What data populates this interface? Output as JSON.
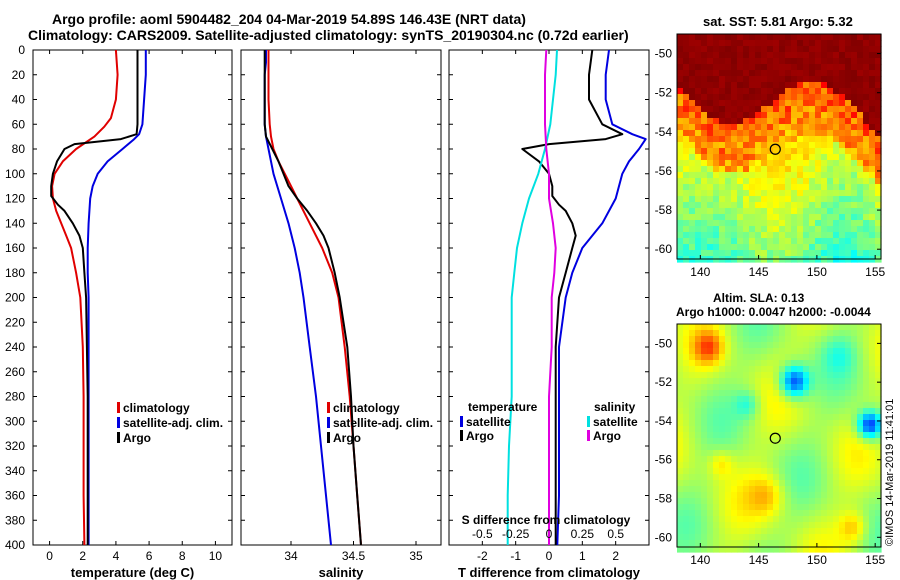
{
  "header": {
    "line1": "Argo profile: aoml 5904482_204 04-Mar-2019 54.89S 146.43E (NRT data)",
    "line2": "Climatology: CARS2009. Satellite-adjusted climatology: synTS_20190304.nc (0.72d earlier)"
  },
  "credit": "©IMOS 14-Mar-2019 11:41:01",
  "colors": {
    "argo": "#000000",
    "clim": "#e00000",
    "sat": "#0000e0",
    "sdiff": "#00e0e0",
    "sal_sat": "#e000e0"
  },
  "chart_data": [
    {
      "id": "temperature",
      "type": "line",
      "xlabel": "temperature (deg C)",
      "xlim": [
        -1,
        11
      ],
      "xticks": [
        "0",
        "2",
        "4",
        "6",
        "8",
        "10"
      ],
      "ylim": [
        0,
        400
      ],
      "yticks": [
        "0",
        "20",
        "40",
        "60",
        "80",
        "100",
        "120",
        "140",
        "160",
        "180",
        "200",
        "220",
        "240",
        "260",
        "280",
        "300",
        "320",
        "340",
        "360",
        "380",
        "400"
      ],
      "legend": [
        "climatology",
        "satellite-adj. clim.",
        "Argo"
      ],
      "series": [
        {
          "name": "climatology",
          "color": "#e00000",
          "depth": [
            0,
            20,
            40,
            55,
            62,
            70,
            80,
            90,
            100,
            110,
            120,
            130,
            140,
            150,
            160,
            180,
            200,
            240,
            280,
            320,
            360,
            400
          ],
          "values": [
            4.0,
            4.1,
            4.0,
            3.7,
            3.3,
            2.7,
            1.6,
            0.8,
            0.3,
            0.15,
            0.2,
            0.4,
            0.7,
            1.0,
            1.3,
            1.6,
            1.85,
            2.0,
            2.05,
            2.05,
            2.05,
            2.1
          ]
        },
        {
          "name": "satellite-adj. clim.",
          "color": "#0000e0",
          "depth": [
            0,
            20,
            40,
            60,
            68,
            72,
            80,
            90,
            100,
            110,
            120,
            140,
            160,
            180,
            200,
            240,
            280,
            320,
            360,
            400
          ],
          "values": [
            5.8,
            5.8,
            5.7,
            5.6,
            5.4,
            5.1,
            4.4,
            3.5,
            2.9,
            2.6,
            2.45,
            2.35,
            2.3,
            2.3,
            2.35,
            2.35,
            2.35,
            2.35,
            2.35,
            2.35
          ]
        },
        {
          "name": "Argo",
          "color": "#000000",
          "depth": [
            0,
            20,
            40,
            60,
            68,
            72,
            76,
            80,
            90,
            100,
            110,
            118,
            125,
            130,
            140,
            150,
            160,
            180,
            200,
            240,
            280,
            320,
            360,
            400
          ],
          "values": [
            5.3,
            5.3,
            5.3,
            5.3,
            5.25,
            4.3,
            1.5,
            0.9,
            0.45,
            0.2,
            0.1,
            0.1,
            0.5,
            0.9,
            1.4,
            1.8,
            2.0,
            2.1,
            2.2,
            2.25,
            2.3,
            2.3,
            2.3,
            2.3
          ]
        }
      ]
    },
    {
      "id": "salinity",
      "type": "line",
      "xlabel": "salinity",
      "xlim": [
        33.6,
        35.2
      ],
      "xticks": [
        "34",
        "34.5",
        "35"
      ],
      "ylim": [
        0,
        400
      ],
      "legend": [
        "climatology",
        "satellite-adj. clim.",
        "Argo"
      ],
      "series": [
        {
          "name": "climatology",
          "color": "#e00000",
          "depth": [
            0,
            20,
            40,
            60,
            70,
            80,
            90,
            100,
            110,
            120,
            140,
            160,
            180,
            200,
            240,
            280,
            320,
            360,
            400
          ],
          "values": [
            33.82,
            33.82,
            33.82,
            33.83,
            33.84,
            33.86,
            33.9,
            33.95,
            34.0,
            34.05,
            34.15,
            34.25,
            34.33,
            34.38,
            34.43,
            34.47,
            34.5,
            34.53,
            34.56
          ]
        },
        {
          "name": "satellite-adj. clim.",
          "color": "#0000e0",
          "depth": [
            0,
            10,
            20,
            40,
            60,
            70,
            80,
            100,
            120,
            140,
            160,
            180,
            200,
            240,
            280,
            320,
            360,
            400
          ],
          "values": [
            33.8,
            33.8,
            33.79,
            33.79,
            33.79,
            33.8,
            33.82,
            33.86,
            33.92,
            33.98,
            34.03,
            34.07,
            34.1,
            34.15,
            34.2,
            34.24,
            34.28,
            34.32
          ]
        },
        {
          "name": "Argo",
          "color": "#000000",
          "depth": [
            0,
            20,
            40,
            60,
            70,
            80,
            90,
            100,
            110,
            120,
            130,
            140,
            150,
            160,
            180,
            200,
            220,
            240,
            280,
            320,
            360,
            400
          ],
          "values": [
            33.79,
            33.79,
            33.79,
            33.79,
            33.8,
            33.85,
            33.9,
            33.94,
            33.98,
            34.05,
            34.13,
            34.2,
            34.26,
            34.3,
            34.35,
            34.39,
            34.42,
            34.45,
            34.48,
            34.5,
            34.53,
            34.56
          ]
        }
      ]
    },
    {
      "id": "difference",
      "type": "line",
      "xlabel": "T difference from climatology",
      "xlabel_top": "S difference from climatology",
      "xlim": [
        -3,
        3
      ],
      "xticks": [
        "-2",
        "-1",
        "0",
        "1",
        "2"
      ],
      "sticks": [
        "-0.5",
        "-0.25",
        "0",
        "0.25",
        "0.5"
      ],
      "ylim": [
        0,
        400
      ],
      "legend_temperature": {
        "heading": "temperature",
        "items": [
          "satellite",
          "Argo"
        ]
      },
      "legend_salinity": {
        "heading": "salinity",
        "items": [
          "satellite",
          "Argo"
        ]
      },
      "series": [
        {
          "name": "T satellite",
          "color": "#0000e0",
          "depth": [
            0,
            20,
            40,
            60,
            68,
            72,
            80,
            90,
            100,
            120,
            140,
            160,
            180,
            200,
            240,
            280,
            320,
            360,
            400
          ],
          "values": [
            1.8,
            1.7,
            1.7,
            1.9,
            2.5,
            2.9,
            2.7,
            2.4,
            2.2,
            2.0,
            1.6,
            1.0,
            0.7,
            0.5,
            0.3,
            0.3,
            0.3,
            0.3,
            0.25
          ]
        },
        {
          "name": "T Argo",
          "color": "#000000",
          "depth": [
            0,
            20,
            40,
            60,
            68,
            72,
            76,
            80,
            90,
            100,
            110,
            118,
            125,
            130,
            140,
            150,
            160,
            180,
            200,
            240,
            280,
            320,
            360,
            400
          ],
          "values": [
            1.3,
            1.2,
            1.2,
            1.6,
            2.2,
            1.7,
            0.0,
            -0.8,
            -0.3,
            0.0,
            0.1,
            0.1,
            0.3,
            0.5,
            0.7,
            0.8,
            0.7,
            0.5,
            0.3,
            0.2,
            0.2,
            0.2,
            0.2,
            0.2
          ]
        },
        {
          "name": "S satellite",
          "color": "#00e0e0",
          "depth": [
            0,
            20,
            40,
            60,
            80,
            100,
            120,
            140,
            160,
            180,
            200,
            240,
            280,
            320,
            360,
            400
          ],
          "values": [
            0.06,
            0.05,
            0.03,
            0.01,
            -0.03,
            -0.08,
            -0.15,
            -0.2,
            -0.24,
            -0.26,
            -0.28,
            -0.28,
            -0.28,
            -0.3,
            -0.31,
            -0.31
          ]
        },
        {
          "name": "S Argo",
          "color": "#e000e0",
          "depth": [
            0,
            20,
            40,
            60,
            80,
            100,
            120,
            140,
            160,
            180,
            200,
            240,
            280,
            320,
            360,
            400
          ],
          "values": [
            -0.02,
            -0.03,
            -0.03,
            -0.03,
            -0.02,
            0.0,
            0.0,
            0.03,
            0.05,
            0.04,
            0.02,
            0.02,
            0.0,
            0.0,
            0.0,
            0.0
          ]
        }
      ]
    },
    {
      "id": "sst_map",
      "type": "heatmap",
      "title": "sat. SST: 5.81  Argo: 5.32",
      "xlim": [
        138,
        155.5
      ],
      "ylim": [
        -60.5,
        -49
      ],
      "xticks": [
        "140",
        "145",
        "150",
        "155"
      ],
      "yticks": [
        "-50",
        "-52",
        "-54",
        "-56",
        "-58",
        "-60"
      ],
      "marker": [
        146.43,
        -54.89
      ]
    },
    {
      "id": "sla_map",
      "type": "heatmap",
      "title": "Altim. SLA: 0.13",
      "subtitle": "Argo h1000: 0.0047 h2000: -0.0044",
      "xlim": [
        138,
        155.5
      ],
      "ylim": [
        -60.5,
        -49
      ],
      "xticks": [
        "140",
        "145",
        "150",
        "155"
      ],
      "yticks": [
        "-50",
        "-52",
        "-54",
        "-56",
        "-58",
        "-60"
      ],
      "marker": [
        146.43,
        -54.89
      ]
    }
  ]
}
